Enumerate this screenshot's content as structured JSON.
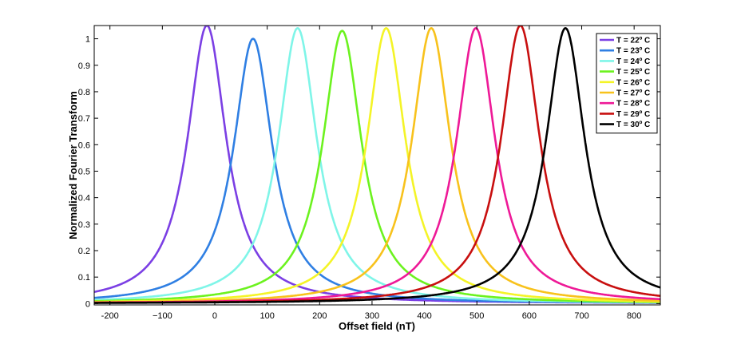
{
  "chart_data": {
    "type": "line",
    "title": "",
    "xlabel": "Offset field (nT)",
    "ylabel": "Normalized Fourier Transform",
    "xlim": [
      -230,
      850
    ],
    "ylim": [
      -0.005,
      1.05
    ],
    "xticks": [
      -200,
      -100,
      0,
      100,
      200,
      300,
      400,
      500,
      600,
      700,
      800
    ],
    "xtick_labels": [
      "-200",
      "−100",
      "0",
      "100",
      "200",
      "300",
      "400",
      "500",
      "600",
      "700",
      "800"
    ],
    "yticks": [
      0,
      0.1,
      0.2,
      0.3,
      0.4,
      0.5,
      0.6,
      0.7,
      0.8,
      0.9,
      1
    ],
    "ytick_labels": [
      "0",
      "0.1",
      "0.2",
      "0.3",
      "0.4",
      "0.5",
      "0.6",
      "0.7",
      "0.8",
      "0.9",
      "1"
    ],
    "grid": false,
    "legend_position": "top-right",
    "curve_shape": "lorentzian",
    "series": [
      {
        "name": "T = 22º C",
        "center": -15,
        "peak": 1.05,
        "hwhm": 45,
        "color": "#7b3fe4"
      },
      {
        "name": "T = 23º C",
        "center": 73,
        "peak": 1.0,
        "hwhm": 45,
        "color": "#2f7fe3"
      },
      {
        "name": "T = 24º C",
        "center": 158,
        "peak": 1.04,
        "hwhm": 45,
        "color": "#7ff5e8"
      },
      {
        "name": "T = 25º C",
        "center": 243,
        "peak": 1.03,
        "hwhm": 45,
        "color": "#6cf21f"
      },
      {
        "name": "T = 26º C",
        "center": 327,
        "peak": 1.04,
        "hwhm": 45,
        "color": "#f4f427"
      },
      {
        "name": "T = 27º C",
        "center": 413,
        "peak": 1.04,
        "hwhm": 45,
        "color": "#f8c21c"
      },
      {
        "name": "T = 28º C",
        "center": 498,
        "peak": 1.04,
        "hwhm": 45,
        "color": "#ee1997"
      },
      {
        "name": "T = 29º C",
        "center": 583,
        "peak": 1.05,
        "hwhm": 45,
        "color": "#c80f0f"
      },
      {
        "name": "T = 30º C",
        "center": 669,
        "peak": 1.04,
        "hwhm": 45,
        "color": "#000000"
      }
    ]
  }
}
